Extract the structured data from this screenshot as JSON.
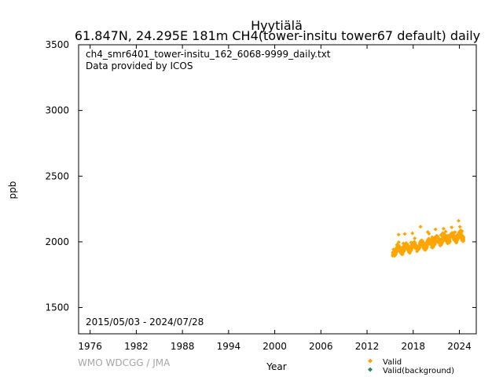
{
  "chart_data": {
    "type": "scatter",
    "title_line1": "Hyytiälä",
    "title_line2": "61.847N, 24.295E 181m    CH4(tower-insitu tower67 default) daily",
    "file_label": "ch4_smr6401_tower-insitu_162_6068-9999_daily.txt",
    "provider_label": "Data provided by ICOS",
    "date_range_label": "2015/05/03 - 2024/07/28",
    "xlabel": "Year",
    "ylabel": "ppb",
    "xlim": [
      1974.5,
      2026.2
    ],
    "ylim": [
      1300,
      3500
    ],
    "xticks": [
      1976,
      1982,
      1988,
      1994,
      2000,
      2006,
      2012,
      2018,
      2024
    ],
    "yticks": [
      1500,
      2000,
      2500,
      3000,
      3500
    ],
    "grid": false,
    "legend_position": "bottom-right",
    "series": [
      {
        "name": "Valid",
        "color": "#ffa500",
        "data_range": [
          "2015-05-03",
          "2024-07-28"
        ],
        "trend": [
          {
            "x": 2015.33,
            "y": 1918
          },
          {
            "x": 2016.0,
            "y": 1935
          },
          {
            "x": 2017.0,
            "y": 1950
          },
          {
            "x": 2018.0,
            "y": 1962
          },
          {
            "x": 2019.0,
            "y": 1972
          },
          {
            "x": 2020.0,
            "y": 1985
          },
          {
            "x": 2021.0,
            "y": 2005
          },
          {
            "x": 2022.0,
            "y": 2020
          },
          {
            "x": 2023.0,
            "y": 2030
          },
          {
            "x": 2024.57,
            "y": 2040
          }
        ],
        "spikes": [
          {
            "x": 2016.1,
            "y": 2055
          },
          {
            "x": 2016.9,
            "y": 2060
          },
          {
            "x": 2017.9,
            "y": 2065
          },
          {
            "x": 2018.95,
            "y": 2115
          },
          {
            "x": 2019.9,
            "y": 2075
          },
          {
            "x": 2020.9,
            "y": 2095
          },
          {
            "x": 2021.95,
            "y": 2100
          },
          {
            "x": 2023.0,
            "y": 2110
          },
          {
            "x": 2023.9,
            "y": 2160
          }
        ]
      },
      {
        "name": "Valid(background)",
        "color": "#2e8b57",
        "points": []
      }
    ]
  },
  "footer": {
    "credit": "WMO WDCGG / JMA"
  }
}
